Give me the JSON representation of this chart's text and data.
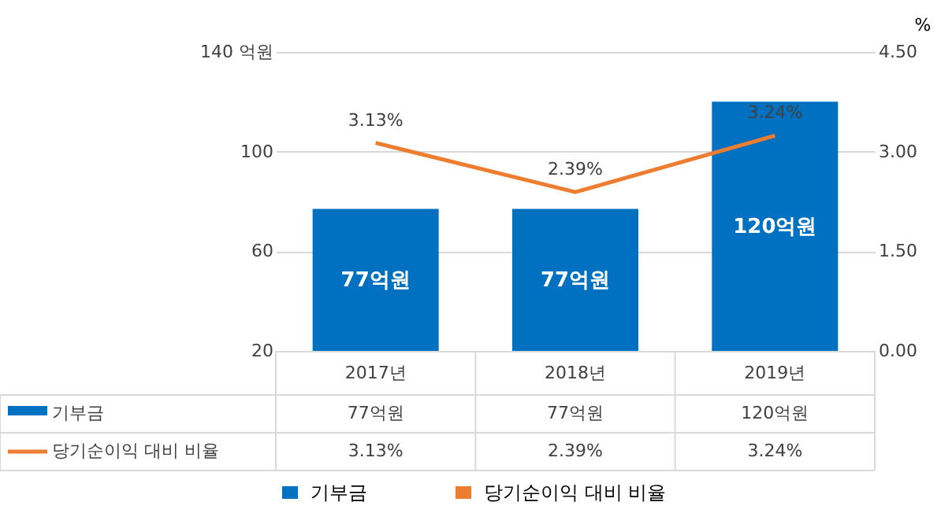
{
  "chart_data": {
    "type": "bar",
    "categories": [
      "2017년",
      "2018년",
      "2019년"
    ],
    "series": [
      {
        "name": "기부금",
        "color": "#0070c0",
        "values": [
          77,
          77,
          120
        ],
        "value_labels": [
          "77억원",
          "77억원",
          "120억원"
        ]
      },
      {
        "name": "당기순이익 대비 비율",
        "type": "line",
        "axis": "y2",
        "color": "#ed7d31",
        "values": [
          3.13,
          2.39,
          3.24
        ],
        "value_labels": [
          "3.13%",
          "2.39%",
          "3.24%"
        ]
      }
    ],
    "ylim": [
      20,
      140
    ],
    "yticks": [
      20,
      60,
      100,
      {
        "value": 140,
        "label": "140 억원"
      }
    ],
    "y2lim": [
      0,
      4.5
    ],
    "y2ticks": [
      {
        "value": 0,
        "label": "0.00"
      },
      {
        "value": 1.5,
        "label": "1.50"
      },
      {
        "value": 3,
        "label": "3.00"
      },
      {
        "value": 4.5,
        "label": "4.50"
      }
    ],
    "y2label": "%",
    "grid": "y",
    "legend": "bottom",
    "marker": "none"
  }
}
